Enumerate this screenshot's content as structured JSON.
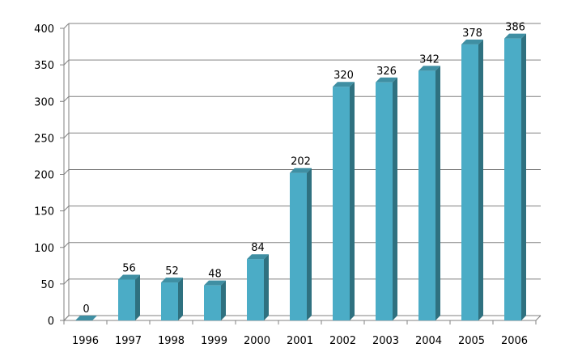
{
  "chart_data": {
    "type": "bar",
    "categories": [
      "1996",
      "1997",
      "1998",
      "1999",
      "2000",
      "2001",
      "2002",
      "2003",
      "2004",
      "2005",
      "2006"
    ],
    "values": [
      0,
      56,
      52,
      48,
      84,
      202,
      320,
      326,
      342,
      378,
      386
    ],
    "data_labels": [
      "0",
      "56",
      "52",
      "48",
      "84",
      "202",
      "320",
      "326",
      "342",
      "378",
      "386"
    ],
    "ylim": [
      0,
      400
    ],
    "y_ticks": [
      0,
      50,
      100,
      150,
      200,
      250,
      300,
      350,
      400
    ],
    "y_tick_labels": [
      "0",
      "50",
      "100",
      "150",
      "200",
      "250",
      "300",
      "350",
      "400"
    ],
    "grid": true,
    "legend": "none",
    "title": "",
    "xlabel": "",
    "ylabel": "",
    "style": "3d-column",
    "colors": {
      "bar_front": "#4bacc6",
      "bar_side": "#2f7180",
      "bar_top": "#3f8fa3",
      "grid": "#808080",
      "wall": "#ffffff"
    }
  }
}
